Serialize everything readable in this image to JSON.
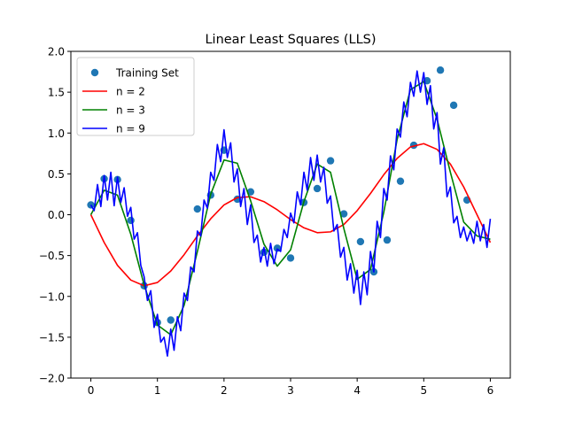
{
  "chart_data": {
    "type": "line",
    "title": "Linear Least Squares (LLS)",
    "xlabel": "",
    "ylabel": "",
    "xlim": [
      -0.3,
      6.3
    ],
    "ylim": [
      -2.0,
      2.0
    ],
    "xticks": [
      0,
      1,
      2,
      3,
      4,
      5,
      6
    ],
    "xtick_labels": [
      "0",
      "1",
      "2",
      "3",
      "4",
      "5",
      "6"
    ],
    "yticks": [
      -2.0,
      -1.5,
      -1.0,
      -0.5,
      0.0,
      0.5,
      1.0,
      1.5,
      2.0
    ],
    "ytick_labels": [
      "−2.0",
      "−1.5",
      "−1.0",
      "−0.5",
      "0.0",
      "0.5",
      "1.0",
      "1.5",
      "2.0"
    ],
    "grid": false,
    "legend_position": "top-left",
    "series": [
      {
        "name": "Training Set",
        "kind": "scatter",
        "color": "#1f77b4",
        "x": [
          0.0,
          0.2,
          0.4,
          0.6,
          0.8,
          1.0,
          1.2,
          1.6,
          1.8,
          2.0,
          2.2,
          2.4,
          2.6,
          2.8,
          3.0,
          3.2,
          3.4,
          3.6,
          3.8,
          4.05,
          4.25,
          4.45,
          4.65,
          4.85,
          5.05,
          5.25,
          5.45,
          5.65
        ],
        "y": [
          0.12,
          0.44,
          0.43,
          -0.07,
          -0.87,
          -1.32,
          -1.29,
          0.07,
          0.24,
          0.79,
          0.19,
          0.28,
          -0.46,
          -0.41,
          -0.53,
          0.15,
          0.32,
          0.66,
          0.01,
          -0.33,
          -0.7,
          -0.31,
          0.41,
          0.85,
          1.64,
          1.77,
          1.34,
          0.18
        ]
      },
      {
        "name": "n = 2",
        "kind": "line",
        "color": "#ff0000",
        "x": [
          0.0,
          0.2,
          0.4,
          0.6,
          0.8,
          1.0,
          1.2,
          1.4,
          1.6,
          1.8,
          2.0,
          2.2,
          2.4,
          2.6,
          2.8,
          3.0,
          3.2,
          3.4,
          3.6,
          3.8,
          4.0,
          4.2,
          4.4,
          4.6,
          4.8,
          5.0,
          5.2,
          5.4,
          5.6,
          5.8,
          6.0
        ],
        "y": [
          0.0,
          -0.34,
          -0.62,
          -0.8,
          -0.87,
          -0.83,
          -0.69,
          -0.49,
          -0.26,
          -0.05,
          0.12,
          0.21,
          0.22,
          0.16,
          0.06,
          -0.06,
          -0.16,
          -0.22,
          -0.21,
          -0.12,
          0.05,
          0.26,
          0.49,
          0.69,
          0.83,
          0.87,
          0.8,
          0.62,
          0.34,
          0.0,
          -0.34
        ]
      },
      {
        "name": "n = 3",
        "kind": "line",
        "color": "#008000",
        "x": [
          0.0,
          0.2,
          0.4,
          0.6,
          0.8,
          1.0,
          1.2,
          1.4,
          1.6,
          1.8,
          2.0,
          2.2,
          2.4,
          2.6,
          2.8,
          3.0,
          3.2,
          3.4,
          3.6,
          3.8,
          4.0,
          4.2,
          4.4,
          4.6,
          4.8,
          5.0,
          5.2,
          5.4,
          5.6,
          5.8,
          6.0
        ],
        "y": [
          0.0,
          0.3,
          0.24,
          -0.24,
          -0.86,
          -1.35,
          -1.47,
          -1.11,
          -0.45,
          0.25,
          0.67,
          0.63,
          0.17,
          -0.36,
          -0.63,
          -0.43,
          0.16,
          0.62,
          0.52,
          -0.17,
          -0.79,
          -0.67,
          0.03,
          0.92,
          1.53,
          1.63,
          1.17,
          0.52,
          -0.09,
          -0.26,
          -0.3
        ]
      },
      {
        "name": "n = 9",
        "kind": "line",
        "color": "#0000ff",
        "x": [
          0.0,
          0.05,
          0.1,
          0.15,
          0.2,
          0.25,
          0.3,
          0.35,
          0.4,
          0.45,
          0.5,
          0.55,
          0.6,
          0.65,
          0.7,
          0.75,
          0.8,
          0.85,
          0.9,
          0.95,
          1.0,
          1.05,
          1.1,
          1.15,
          1.2,
          1.25,
          1.3,
          1.35,
          1.4,
          1.45,
          1.5,
          1.55,
          1.6,
          1.65,
          1.7,
          1.75,
          1.8,
          1.85,
          1.9,
          1.95,
          2.0,
          2.05,
          2.1,
          2.15,
          2.2,
          2.25,
          2.3,
          2.35,
          2.4,
          2.45,
          2.5,
          2.55,
          2.6,
          2.65,
          2.7,
          2.75,
          2.8,
          2.85,
          2.9,
          2.95,
          3.0,
          3.05,
          3.1,
          3.15,
          3.2,
          3.25,
          3.3,
          3.35,
          3.4,
          3.45,
          3.5,
          3.55,
          3.6,
          3.65,
          3.7,
          3.75,
          3.8,
          3.85,
          3.9,
          3.95,
          4.0,
          4.05,
          4.1,
          4.15,
          4.2,
          4.25,
          4.3,
          4.35,
          4.4,
          4.45,
          4.5,
          4.55,
          4.6,
          4.65,
          4.7,
          4.75,
          4.8,
          4.85,
          4.9,
          4.95,
          5.0,
          5.05,
          5.1,
          5.15,
          5.2,
          5.25,
          5.3,
          5.35,
          5.4,
          5.45,
          5.5,
          5.55,
          5.6,
          5.65,
          5.7,
          5.75,
          5.8,
          5.85,
          5.9,
          5.95,
          6.0
        ],
        "y": [
          0.12,
          0.05,
          0.37,
          0.1,
          0.48,
          0.18,
          0.52,
          0.11,
          0.46,
          0.15,
          0.33,
          -0.02,
          0.09,
          -0.3,
          -0.22,
          -0.62,
          -0.76,
          -1.05,
          -0.93,
          -1.38,
          -1.22,
          -1.56,
          -1.5,
          -1.73,
          -1.4,
          -1.66,
          -1.25,
          -1.42,
          -0.96,
          -1.05,
          -0.64,
          -0.7,
          -0.2,
          -0.26,
          0.18,
          0.08,
          0.52,
          0.42,
          0.86,
          0.65,
          1.04,
          0.7,
          0.88,
          0.4,
          0.56,
          0.1,
          0.32,
          -0.12,
          0.12,
          -0.34,
          -0.25,
          -0.58,
          -0.4,
          -0.63,
          -0.35,
          -0.6,
          -0.42,
          -0.45,
          -0.18,
          -0.28,
          0.02,
          -0.1,
          0.28,
          0.12,
          0.52,
          0.3,
          0.7,
          0.42,
          0.73,
          0.4,
          0.58,
          0.14,
          0.23,
          -0.2,
          -0.12,
          -0.52,
          -0.4,
          -0.8,
          -0.6,
          -0.96,
          -0.68,
          -1.1,
          -0.7,
          -0.98,
          -0.45,
          -0.7,
          -0.08,
          -0.28,
          0.32,
          0.18,
          0.72,
          0.55,
          1.05,
          0.95,
          1.38,
          1.2,
          1.62,
          1.45,
          1.76,
          1.5,
          1.74,
          1.35,
          1.58,
          1.05,
          1.25,
          0.62,
          0.82,
          0.22,
          0.34,
          -0.1,
          -0.02,
          -0.28,
          -0.15,
          -0.32,
          -0.2,
          -0.35,
          -0.08,
          -0.32,
          -0.12,
          -0.4,
          -0.05
        ]
      }
    ]
  }
}
